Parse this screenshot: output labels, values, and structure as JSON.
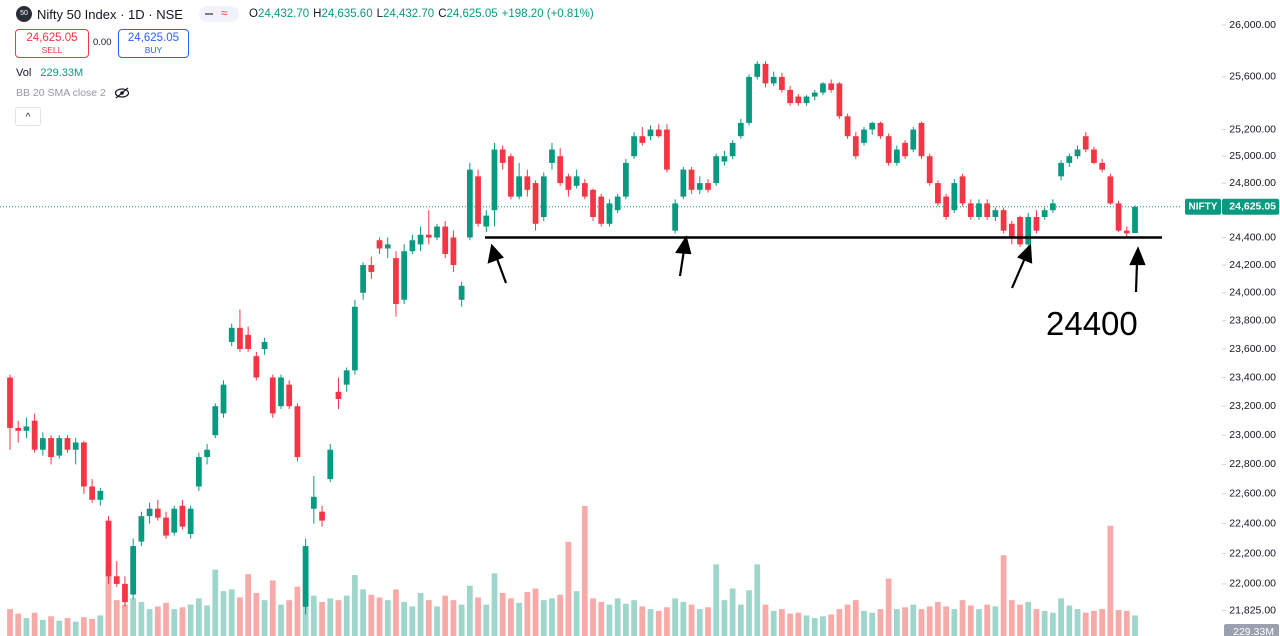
{
  "chart_data": {
    "type": "candlestick",
    "title": "Nifty 50 Index · 1D · NSE",
    "ohlc": [
      {
        "label": "O",
        "value": "24,432.70"
      },
      {
        "label": "H",
        "value": "24,635.60"
      },
      {
        "label": "L",
        "value": "24,432.70"
      },
      {
        "label": "C",
        "value": "24,625.05"
      }
    ],
    "change": "+198.20 (+0.81%)",
    "sell": {
      "price": "24,625.05",
      "label": "SELL"
    },
    "spread": "0.00",
    "buy": {
      "price": "24,625.05",
      "label": "BUY"
    },
    "volume_name": "Vol",
    "volume_label": "229.33M",
    "indicator": "BB 20 SMA close 2",
    "symbol": "NIFTY",
    "last_price": {
      "value": 24625.05,
      "label": "24,625.05"
    },
    "support_level": {
      "value": 24400,
      "label": "24400"
    },
    "log_scale": true,
    "up_color": "#089981",
    "down_color": "#f23645",
    "volume_up_color": "#9fd6cc",
    "volume_down_color": "#f7aaa8",
    "ylim": [
      21660,
      26195
    ],
    "yticks": [
      {
        "value": 26000,
        "label": "26,000.00"
      },
      {
        "value": 25600,
        "label": "25,600.00"
      },
      {
        "value": 25200,
        "label": "25,200.00"
      },
      {
        "value": 25000,
        "label": "25,000.00"
      },
      {
        "value": 24800,
        "label": "24,800.00"
      },
      {
        "value": 24400,
        "label": "24,400.00"
      },
      {
        "value": 24200,
        "label": "24,200.00"
      },
      {
        "value": 24000,
        "label": "24,000.00"
      },
      {
        "value": 23800,
        "label": "23,800.00"
      },
      {
        "value": 23600,
        "label": "23,600.00"
      },
      {
        "value": 23400,
        "label": "23,400.00"
      },
      {
        "value": 23200,
        "label": "23,200.00"
      },
      {
        "value": 23000,
        "label": "23,000.00"
      },
      {
        "value": 22800,
        "label": "22,800.00"
      },
      {
        "value": 22600,
        "label": "22,600.00"
      },
      {
        "value": 22400,
        "label": "22,400.00"
      },
      {
        "value": 22200,
        "label": "22,200.00"
      },
      {
        "value": 22000,
        "label": "22,000.00"
      },
      {
        "value": 21825,
        "label": "21,825.00"
      }
    ],
    "open": [
      23400,
      23050,
      23030,
      23100,
      22900,
      22980,
      22860,
      22980,
      22900,
      22950,
      22650,
      22560,
      22420,
      22050,
      22000,
      21930,
      22280,
      22450,
      22500,
      22440,
      22340,
      22520,
      22330,
      22650,
      22850,
      23000,
      23150,
      23650,
      23750,
      23700,
      23550,
      23600,
      23400,
      23200,
      23350,
      23200,
      21850,
      22500,
      22480,
      22700,
      23300,
      23350,
      23450,
      24000,
      24200,
      24380,
      24320,
      24250,
      23950,
      24300,
      24350,
      24420,
      24400,
      24480,
      24400,
      23950,
      24400,
      24850,
      24480,
      24600,
      25050,
      25000,
      24700,
      24850,
      24800,
      24550,
      24950,
      25000,
      24850,
      24780,
      24800,
      24750,
      24700,
      24500,
      24600,
      24700,
      25000,
      25150,
      25150,
      25200,
      25200,
      24450,
      24700,
      24900,
      24750,
      24800,
      24800,
      24960,
      25000,
      25150,
      25250,
      25600,
      25700,
      25550,
      25600,
      25500,
      25450,
      25400,
      25450,
      25480,
      25550,
      25550,
      25300,
      25150,
      25100,
      25200,
      25250,
      25150,
      24950,
      25100,
      25050,
      25250,
      25000,
      24800,
      24700,
      24600,
      24850,
      24650,
      24550,
      24650,
      24550,
      24600,
      24500,
      24550,
      24350,
      24550,
      24550,
      24600,
      24850,
      24950,
      25000,
      25150,
      25050,
      24950,
      24850,
      24650,
      24450,
      24432.7
    ],
    "high": [
      23420,
      23100,
      23120,
      23150,
      23020,
      23000,
      23000,
      23000,
      22980,
      22960,
      22700,
      22640,
      22450,
      22150,
      22050,
      22300,
      22480,
      22540,
      22560,
      22480,
      22520,
      22560,
      22520,
      22880,
      22940,
      23220,
      23380,
      23780,
      23880,
      23760,
      23580,
      23680,
      23420,
      23420,
      23380,
      23220,
      22300,
      22720,
      22520,
      22940,
      23400,
      23470,
      23950,
      24220,
      24260,
      24400,
      24400,
      24300,
      24350,
      24420,
      24480,
      24600,
      24500,
      24520,
      24450,
      24080,
      24950,
      24900,
      24600,
      25100,
      25080,
      25020,
      24950,
      24900,
      24820,
      24880,
      25100,
      25060,
      24870,
      24900,
      24830,
      24760,
      24720,
      24680,
      24720,
      24980,
      25180,
      25220,
      25230,
      25240,
      25240,
      24680,
      24920,
      24920,
      24850,
      24830,
      25020,
      25040,
      25120,
      25280,
      25620,
      25720,
      25720,
      25640,
      25630,
      25530,
      25470,
      25460,
      25500,
      25560,
      25580,
      25560,
      25320,
      25180,
      25220,
      25260,
      25260,
      25170,
      25080,
      25120,
      25220,
      25260,
      25020,
      24820,
      24720,
      24830,
      24870,
      24680,
      24680,
      24680,
      24620,
      24620,
      24520,
      24560,
      24580,
      24600,
      24620,
      24680,
      24970,
      25020,
      25080,
      25180,
      25070,
      24980,
      24870,
      24670,
      24480,
      24635.6
    ],
    "low": [
      22900,
      22950,
      22980,
      22880,
      22860,
      22800,
      22840,
      22880,
      22800,
      22600,
      22540,
      22520,
      22000,
      21980,
      21850,
      21900,
      22250,
      22400,
      22420,
      22300,
      22320,
      22360,
      22300,
      22620,
      22800,
      22980,
      23120,
      23620,
      23580,
      23580,
      23380,
      23560,
      23120,
      23180,
      23180,
      22820,
      21800,
      22400,
      22380,
      22680,
      23180,
      23300,
      23420,
      23950,
      24100,
      24280,
      24250,
      23830,
      23920,
      24280,
      24300,
      24350,
      24380,
      24250,
      24150,
      23900,
      24380,
      24480,
      24440,
      24480,
      24900,
      24680,
      24680,
      24700,
      24450,
      24520,
      24900,
      24780,
      24700,
      24760,
      24680,
      24520,
      24480,
      24480,
      24580,
      24680,
      24980,
      25080,
      25120,
      25140,
      24880,
      24430,
      24680,
      24720,
      24720,
      24730,
      24780,
      24930,
      24980,
      25130,
      25230,
      25580,
      25520,
      25530,
      25480,
      25380,
      25380,
      25380,
      25420,
      25460,
      25480,
      25280,
      25130,
      24980,
      25080,
      25160,
      25130,
      24930,
      24930,
      24980,
      25030,
      24980,
      24780,
      24630,
      24530,
      24580,
      24630,
      24530,
      24530,
      24530,
      24520,
      24430,
      24350,
      24330,
      24330,
      24430,
      24530,
      24580,
      24820,
      24920,
      24980,
      25030,
      24940,
      24880,
      24640,
      24440,
      24400,
      24432.7
    ],
    "close": [
      23050,
      23030,
      23060,
      22900,
      22980,
      22850,
      22980,
      22900,
      22950,
      22650,
      22560,
      22620,
      22050,
      22000,
      21880,
      22250,
      22450,
      22500,
      22440,
      22320,
      22500,
      22380,
      22500,
      22850,
      22900,
      23200,
      23350,
      23750,
      23600,
      23600,
      23400,
      23650,
      23150,
      23400,
      23200,
      22850,
      22250,
      22580,
      22420,
      22900,
      23250,
      23450,
      23900,
      24200,
      24150,
      24320,
      24350,
      23920,
      24300,
      24380,
      24420,
      24400,
      24480,
      24280,
      24200,
      24050,
      24900,
      24500,
      24560,
      25050,
      24950,
      24700,
      24850,
      24750,
      24500,
      24850,
      25050,
      24800,
      24750,
      24850,
      24700,
      24550,
      24500,
      24650,
      24700,
      24950,
      25150,
      25100,
      25200,
      25150,
      24900,
      24650,
      24900,
      24750,
      24800,
      24750,
      25000,
      25000,
      25100,
      25250,
      25600,
      25700,
      25550,
      25600,
      25500,
      25400,
      25400,
      25450,
      25480,
      25550,
      25500,
      25300,
      25150,
      25000,
      25200,
      25250,
      25150,
      24950,
      25050,
      25000,
      25200,
      25000,
      24800,
      24650,
      24550,
      24800,
      24650,
      24550,
      24650,
      24550,
      24600,
      24450,
      24400,
      24350,
      24550,
      24450,
      24600,
      24650,
      24950,
      25000,
      25050,
      25050,
      24950,
      24900,
      24650,
      24450,
      24430,
      24625.05
    ],
    "volume": [
      300,
      250,
      200,
      260,
      180,
      220,
      170,
      200,
      160,
      210,
      190,
      230,
      800,
      400,
      350,
      420,
      380,
      300,
      330,
      370,
      300,
      320,
      350,
      420,
      340,
      740,
      500,
      520,
      430,
      690,
      480,
      400,
      620,
      350,
      400,
      550,
      1000,
      450,
      380,
      420,
      400,
      450,
      680,
      520,
      460,
      430,
      400,
      520,
      380,
      330,
      480,
      400,
      330,
      450,
      400,
      350,
      560,
      430,
      350,
      700,
      480,
      420,
      370,
      490,
      530,
      400,
      420,
      460,
      1050,
      500,
      1450,
      420,
      380,
      350,
      420,
      360,
      400,
      330,
      300,
      280,
      320,
      420,
      380,
      350,
      300,
      320,
      800,
      400,
      530,
      350,
      510,
      800,
      350,
      280,
      300,
      250,
      260,
      230,
      200,
      220,
      240,
      300,
      350,
      400,
      280,
      260,
      300,
      640,
      300,
      320,
      350,
      300,
      330,
      380,
      330,
      300,
      400,
      340,
      300,
      350,
      330,
      900,
      400,
      350,
      380,
      300,
      280,
      260,
      420,
      340,
      300,
      260,
      280,
      300,
      1230,
      290,
      280,
      229.33
    ]
  }
}
